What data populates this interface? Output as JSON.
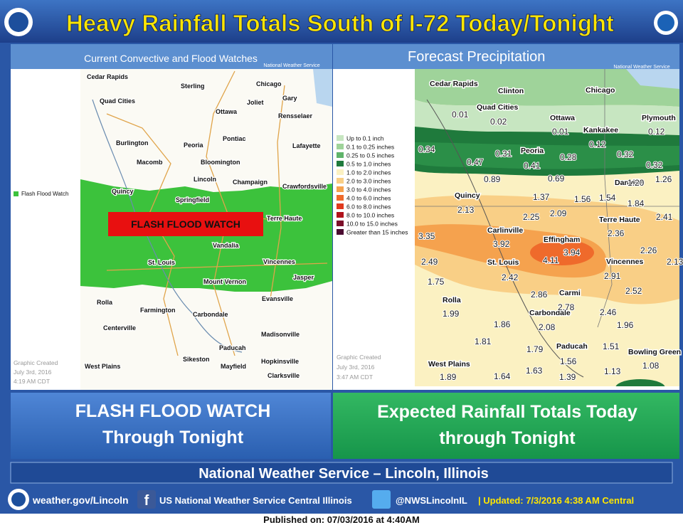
{
  "header": {
    "title": "Heavy Rainfall Totals South of I-72 Today/Tonight"
  },
  "left_map": {
    "title": "Current Convective and Flood Watches",
    "credit": "National Weather Service",
    "legend_label": "Flash Flood Watch",
    "watch_label": "FLASH FLOOD WATCH",
    "created": [
      "Graphic Created",
      "July 3rd, 2016",
      "4:19 AM CDT"
    ],
    "cities": [
      "Cedar Rapids",
      "Sterling",
      "Chicago",
      "Gary",
      "Quad Cities",
      "Joliet",
      "Ottawa",
      "Rensselaer",
      "Pontiac",
      "Burlington",
      "Peoria",
      "Lafayette",
      "Macomb",
      "Bloomington",
      "Champaign",
      "Lincoln",
      "Crawfordsville",
      "Quincy",
      "Springfield",
      "Terre Haute",
      "Vandalia",
      "St. Louis",
      "Vincennes",
      "Jasper",
      "Mount Vernon",
      "Rolla",
      "Evansville",
      "Farmington",
      "Carbondale",
      "Centerville",
      "Madisonville",
      "Paducah",
      "Sikeston",
      "Hopkinsville",
      "Mayfield",
      "Clarksville",
      "West Plains"
    ]
  },
  "right_map": {
    "title": "Forecast Precipitation",
    "credit": "National Weather Service",
    "legend": [
      {
        "label": "Up to 0.1 inch",
        "color": "#c7e6c1"
      },
      {
        "label": "0.1 to 0.25 inches",
        "color": "#9fd39a"
      },
      {
        "label": "0.25 to 0.5 inches",
        "color": "#5fb36a"
      },
      {
        "label": "0.5 to 1.0 inches",
        "color": "#1f7a3c"
      },
      {
        "label": "1.0 to 2.0 inches",
        "color": "#fbf1c2"
      },
      {
        "label": "2.0 to 3.0 inches",
        "color": "#f9cf86"
      },
      {
        "label": "3.0 to 4.0 inches",
        "color": "#f5a24e"
      },
      {
        "label": "4.0 to 6.0 inches",
        "color": "#ef6a2b"
      },
      {
        "label": "6.0 to 8.0 inches",
        "color": "#e03a1e"
      },
      {
        "label": "8.0 to 10.0 inches",
        "color": "#b0121b"
      },
      {
        "label": "10.0 to 15.0 inches",
        "color": "#7c0f2a"
      },
      {
        "label": "Greater than 15 inches",
        "color": "#4a0a30"
      }
    ],
    "created": [
      "Graphic Created",
      "July 3rd, 2016",
      "3:47 AM CDT"
    ],
    "cities": [
      "Cedar Rapids",
      "Clinton",
      "Chicago",
      "Quad Cities",
      "Ottawa",
      "Plymouth",
      "Kankakee",
      "Peoria",
      "Danville",
      "Quincy",
      "Terre Haute",
      "Carlinville",
      "Effingham",
      "St. Louis",
      "Vincennes",
      "Rolla",
      "Carmi",
      "Carbondale",
      "Paducah",
      "Bowling Green",
      "West Plains"
    ],
    "values": [
      "0.01",
      "0.02",
      "0.01",
      "0.12",
      "0.12",
      "0.34",
      "0.47",
      "0.31",
      "0.41",
      "0.28",
      "0.32",
      "0.32",
      "0.89",
      "0.69",
      "1.20",
      "1.26",
      "1.37",
      "1.56",
      "1.54",
      "1.84",
      "2.13",
      "2.25",
      "2.09",
      "2.41",
      "2.36",
      "3.35",
      "3.92",
      "3.94",
      "4.11",
      "2.26",
      "2.13",
      "2.49",
      "2.91",
      "1.75",
      "2.42",
      "2.52",
      "2.86",
      "2.78",
      "2.46",
      "1.99",
      "2.08",
      "1.86",
      "1.96",
      "1.81",
      "1.79",
      "1.51",
      "1.56",
      "1.08",
      "1.63",
      "1.13",
      "1.89",
      "1.64",
      "1.39"
    ]
  },
  "panels": {
    "left": [
      "FLASH FLOOD WATCH",
      "Through Tonight"
    ],
    "right": [
      "Expected Rainfall Totals Today",
      "through Tonight"
    ]
  },
  "office": "National Weather Service – Lincoln, Illinois",
  "footer": {
    "website": "weather.gov/Lincoln",
    "facebook": "US National Weather Service Central Illinois",
    "twitter": "@NWSLincolnIL",
    "updated": "| Updated: 7/3/2016 4:38 AM Central"
  },
  "published": "Published on: 07/03/2016 at 4:40AM"
}
